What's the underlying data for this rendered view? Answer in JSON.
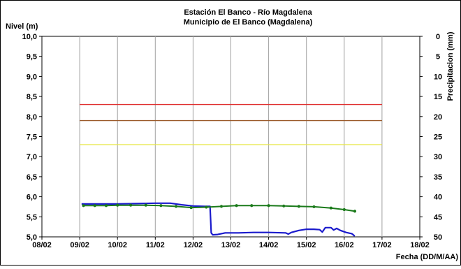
{
  "chart_data": {
    "type": "line",
    "title": "Estación El Banco - Río Magdalena",
    "subtitle": "Municipio de El Banco (Magdalena)",
    "ylabel": "Nivel (m)",
    "y2label": "Precipitacion (mm)",
    "xlabel": "Fecha (DD/M/AA)",
    "x_unit": "days (0 = 08/02)",
    "xlim": [
      0,
      10
    ],
    "ylim": [
      5.0,
      10.0
    ],
    "y2lim": [
      50,
      0
    ],
    "x_ticks": [
      {
        "v": 0,
        "label": "08/02"
      },
      {
        "v": 1,
        "label": "09/02"
      },
      {
        "v": 2,
        "label": "10/02"
      },
      {
        "v": 3,
        "label": "11/02"
      },
      {
        "v": 4,
        "label": "12/02"
      },
      {
        "v": 5,
        "label": "13/02"
      },
      {
        "v": 6,
        "label": "14/02"
      },
      {
        "v": 7,
        "label": "15/02"
      },
      {
        "v": 8,
        "label": "16/02"
      },
      {
        "v": 9,
        "label": "17/02"
      },
      {
        "v": 10,
        "label": "18/02"
      }
    ],
    "y_ticks": [
      {
        "v": 10.0,
        "label": "10,0"
      },
      {
        "v": 9.5,
        "label": "9,5"
      },
      {
        "v": 9.0,
        "label": "9,0"
      },
      {
        "v": 8.5,
        "label": "8,5"
      },
      {
        "v": 8.0,
        "label": "8,0"
      },
      {
        "v": 7.5,
        "label": "7,5"
      },
      {
        "v": 7.0,
        "label": "7,0"
      },
      {
        "v": 6.5,
        "label": "6,5"
      },
      {
        "v": 6.0,
        "label": "6,0"
      },
      {
        "v": 5.5,
        "label": "5,5"
      },
      {
        "v": 5.0,
        "label": "5,0"
      }
    ],
    "y2_ticks": [
      {
        "v": 0,
        "label": "0"
      },
      {
        "v": 5,
        "label": "5"
      },
      {
        "v": 10,
        "label": "10"
      },
      {
        "v": 15,
        "label": "15"
      },
      {
        "v": 20,
        "label": "20"
      },
      {
        "v": 25,
        "label": "25"
      },
      {
        "v": 30,
        "label": "30"
      },
      {
        "v": 35,
        "label": "35"
      },
      {
        "v": 40,
        "label": "40"
      },
      {
        "v": 45,
        "label": "45"
      },
      {
        "v": 50,
        "label": "50"
      }
    ],
    "thresholds": [
      {
        "value": 8.3,
        "color": "#e03030",
        "x_start": 1.0,
        "x_end": 9.0
      },
      {
        "value": 7.9,
        "color": "#9a5a2a",
        "x_start": 1.0,
        "x_end": 9.0
      },
      {
        "value": 7.3,
        "color": "#e8e840",
        "x_start": 1.0,
        "x_end": 9.0
      }
    ],
    "series": [
      {
        "color": "#1a1acc",
        "points": [
          [
            1.05,
            5.82
          ],
          [
            1.5,
            5.82
          ],
          [
            2.0,
            5.82
          ],
          [
            2.5,
            5.83
          ],
          [
            3.0,
            5.84
          ],
          [
            3.4,
            5.84
          ],
          [
            3.7,
            5.8
          ],
          [
            4.0,
            5.77
          ],
          [
            4.3,
            5.76
          ],
          [
            4.45,
            5.76
          ],
          [
            4.48,
            5.1
          ],
          [
            4.52,
            5.05
          ],
          [
            4.65,
            5.06
          ],
          [
            4.85,
            5.1
          ],
          [
            5.2,
            5.1
          ],
          [
            5.6,
            5.11
          ],
          [
            6.0,
            5.11
          ],
          [
            6.45,
            5.1
          ],
          [
            6.52,
            5.07
          ],
          [
            6.6,
            5.11
          ],
          [
            6.8,
            5.16
          ],
          [
            7.0,
            5.19
          ],
          [
            7.2,
            5.19
          ],
          [
            7.35,
            5.18
          ],
          [
            7.42,
            5.12
          ],
          [
            7.5,
            5.23
          ],
          [
            7.65,
            5.23
          ],
          [
            7.72,
            5.17
          ],
          [
            7.8,
            5.21
          ],
          [
            7.9,
            5.16
          ],
          [
            8.05,
            5.11
          ],
          [
            8.2,
            5.08
          ],
          [
            8.28,
            5.02
          ]
        ]
      },
      {
        "color": "#1a7a1a",
        "points": [
          [
            1.1,
            5.78
          ],
          [
            1.4,
            5.78
          ],
          [
            1.7,
            5.78
          ],
          [
            2.0,
            5.79
          ],
          [
            2.35,
            5.79
          ],
          [
            2.75,
            5.79
          ],
          [
            3.15,
            5.78
          ],
          [
            3.55,
            5.76
          ],
          [
            3.95,
            5.73
          ],
          [
            4.35,
            5.74
          ],
          [
            4.75,
            5.76
          ],
          [
            5.15,
            5.78
          ],
          [
            5.55,
            5.78
          ],
          [
            6.0,
            5.78
          ],
          [
            6.4,
            5.77
          ],
          [
            6.8,
            5.76
          ],
          [
            7.2,
            5.75
          ],
          [
            7.65,
            5.72
          ],
          [
            8.0,
            5.68
          ],
          [
            8.28,
            5.64
          ]
        ]
      }
    ]
  }
}
